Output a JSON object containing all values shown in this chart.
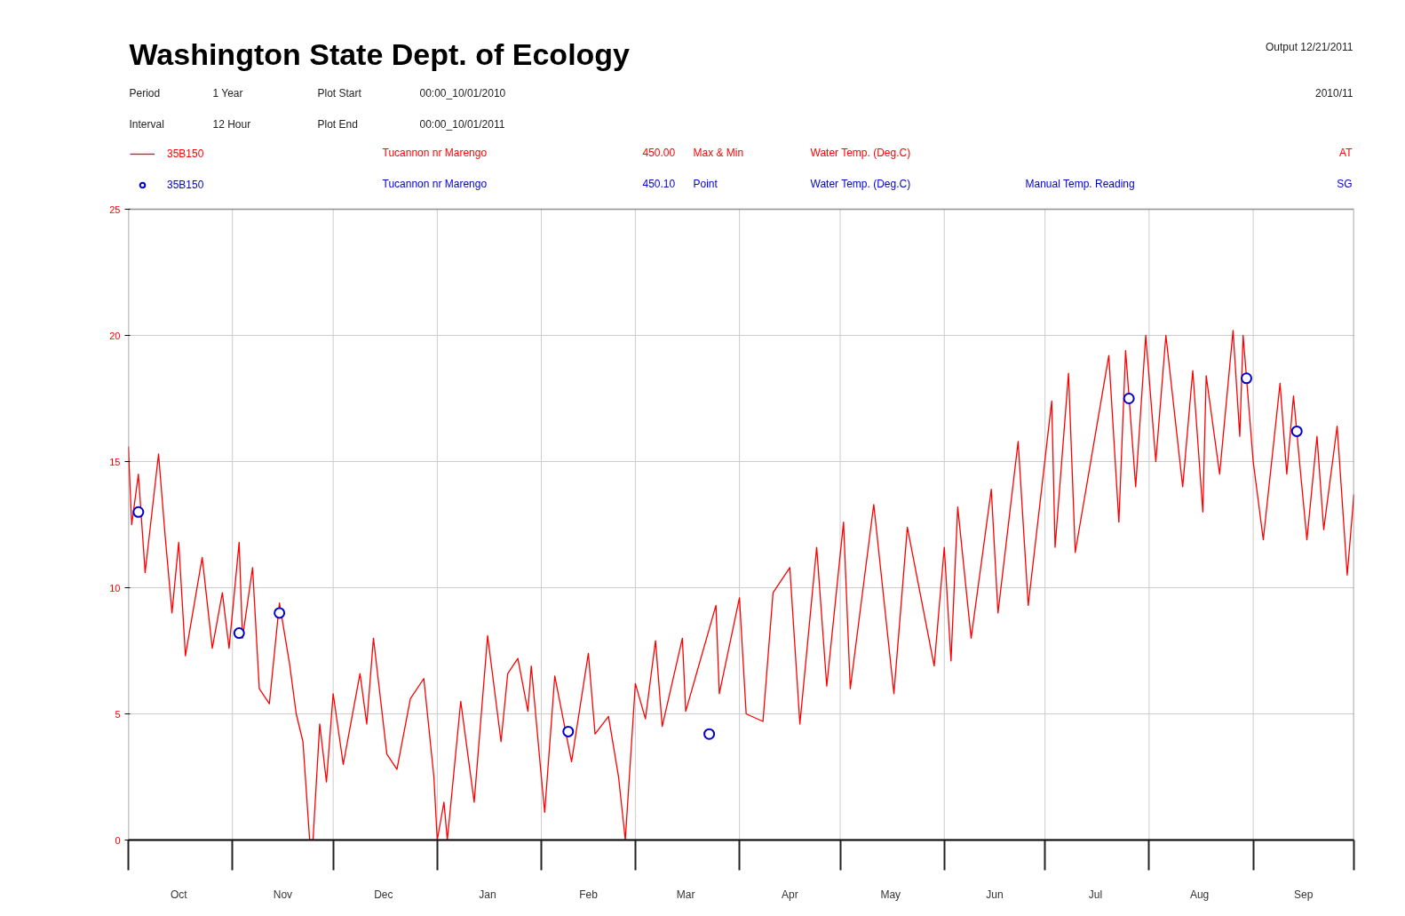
{
  "chart_data": {
    "type": "line",
    "title": "Washington State Dept. of Ecology",
    "annotations": [
      "Period",
      "1 Year",
      "Plot Start",
      "00:00_10/01/2010",
      "Output 12/21/2011",
      "2010/11",
      "Interval",
      "12 Hour",
      "Plot End",
      "00:00_10/01/2011",
      "Tucannon nr Marengo",
      "450.00",
      "Max & Min",
      "Water Temp. (Deg.C)",
      "AT",
      "Tucannon nr Marengo",
      "450.10",
      "Point",
      "Water Temp. (Deg.C)",
      "Manual Temp. Reading",
      "SG"
    ],
    "xlim": [
      "2010-10-01",
      "2011-10-01"
    ],
    "xticks": [
      {
        "value": "2010-10-01",
        "label": null
      },
      {
        "value": "2010-10-16",
        "label": "Oct"
      },
      {
        "value": "2010-11-01",
        "label": null
      },
      {
        "value": "2010-11-16",
        "label": "Nov"
      },
      {
        "value": "2010-12-01",
        "label": null
      },
      {
        "value": "2010-12-16",
        "label": "Dec"
      },
      {
        "value": "2011-01-01",
        "label": null
      },
      {
        "value": "2011-01-16",
        "label": "Jan"
      },
      {
        "value": "2011-02-01",
        "label": null
      },
      {
        "value": "2011-02-15",
        "label": "Feb"
      },
      {
        "value": "2011-03-01",
        "label": null
      },
      {
        "value": "2011-03-16",
        "label": "Mar"
      },
      {
        "value": "2011-04-01",
        "label": null
      },
      {
        "value": "2011-04-16",
        "label": "Apr"
      },
      {
        "value": "2011-05-01",
        "label": null
      },
      {
        "value": "2011-05-16",
        "label": "May"
      },
      {
        "value": "2011-06-01",
        "label": null
      },
      {
        "value": "2011-06-16",
        "label": "Jun"
      },
      {
        "value": "2011-07-01",
        "label": null
      },
      {
        "value": "2011-07-16",
        "label": "Jul"
      },
      {
        "value": "2011-08-01",
        "label": null
      },
      {
        "value": "2011-08-16",
        "label": "Aug"
      },
      {
        "value": "2011-09-01",
        "label": null
      },
      {
        "value": "2011-09-16",
        "label": "Sep"
      },
      {
        "value": "2011-10-01",
        "label": null
      }
    ],
    "ylim": [
      0,
      25
    ],
    "yticks": [
      0,
      5,
      10,
      15,
      20,
      25
    ],
    "grid": true,
    "legend": "top left",
    "series": [
      {
        "name": "35B150",
        "color": "#ff0000",
        "x": [
          "2010-10-01",
          "2010-10-02",
          "2010-10-04",
          "2010-10-06",
          "2010-10-10",
          "2010-10-12",
          "2010-10-14",
          "2010-10-16",
          "2010-10-18",
          "2010-10-23",
          "2010-10-26",
          "2010-10-29",
          "2010-10-31",
          "2010-11-03",
          "2010-11-04",
          "2010-11-07",
          "2010-11-09",
          "2010-11-12",
          "2010-11-15",
          "2010-11-18",
          "2010-11-20",
          "2010-11-22",
          "2010-11-24",
          "2010-11-25",
          "2010-11-27",
          "2010-11-29",
          "2010-12-01",
          "2010-12-04",
          "2010-12-09",
          "2010-12-11",
          "2010-12-13",
          "2010-12-17",
          "2010-12-20",
          "2010-12-24",
          "2010-12-28",
          "2010-12-31",
          "2011-01-01",
          "2011-01-03",
          "2011-01-04",
          "2011-01-08",
          "2011-01-12",
          "2011-01-16",
          "2011-01-20",
          "2011-01-22",
          "2011-01-25",
          "2011-01-28",
          "2011-01-29",
          "2011-02-01",
          "2011-02-02",
          "2011-02-05",
          "2011-02-10",
          "2011-02-15",
          "2011-02-17",
          "2011-02-21",
          "2011-02-24",
          "2011-02-26",
          "2011-03-01",
          "2011-03-04",
          "2011-03-07",
          "2011-03-09",
          "2011-03-15",
          "2011-03-16",
          "2011-03-25",
          "2011-03-26",
          "2011-04-01",
          "2011-04-03",
          "2011-04-08",
          "2011-04-11",
          "2011-04-16",
          "2011-04-19",
          "2011-04-24",
          "2011-04-27",
          "2011-05-02",
          "2011-05-04",
          "2011-05-11",
          "2011-05-17",
          "2011-05-21",
          "2011-05-29",
          "2011-06-01",
          "2011-06-03",
          "2011-06-05",
          "2011-06-09",
          "2011-06-15",
          "2011-06-17",
          "2011-06-23",
          "2011-06-26",
          "2011-07-03",
          "2011-07-04",
          "2011-07-08",
          "2011-07-10",
          "2011-07-20",
          "2011-07-23",
          "2011-07-25",
          "2011-07-28",
          "2011-07-31",
          "2011-08-03",
          "2011-08-06",
          "2011-08-11",
          "2011-08-14",
          "2011-08-17",
          "2011-08-18",
          "2011-08-22",
          "2011-08-26",
          "2011-08-28",
          "2011-08-29",
          "2011-09-01",
          "2011-09-04",
          "2011-09-09",
          "2011-09-11",
          "2011-09-13",
          "2011-09-15",
          "2011-09-17",
          "2011-09-20",
          "2011-09-22",
          "2011-09-26",
          "2011-09-29",
          "2011-10-01"
        ],
        "values": [
          15.6,
          12.5,
          14.5,
          10.6,
          15.3,
          12.0,
          9.0,
          11.8,
          7.3,
          11.2,
          7.6,
          9.8,
          7.6,
          11.8,
          8.0,
          10.8,
          6.0,
          5.4,
          9.4,
          7.0,
          5.0,
          3.9,
          0,
          0,
          4.6,
          2.3,
          5.8,
          3.0,
          6.6,
          4.6,
          8.0,
          3.4,
          2.8,
          5.6,
          6.4,
          2.5,
          0,
          1.5,
          0,
          5.5,
          1.5,
          8.1,
          3.9,
          6.6,
          7.2,
          5.1,
          6.9,
          2.5,
          1.1,
          6.5,
          3.1,
          7.4,
          4.2,
          4.9,
          2.5,
          0,
          6.2,
          4.8,
          7.9,
          4.5,
          8.0,
          5.1,
          9.3,
          5.8,
          9.6,
          5.0,
          4.7,
          9.8,
          10.8,
          4.6,
          11.6,
          6.1,
          12.6,
          6.0,
          13.3,
          5.8,
          12.4,
          6.9,
          11.6,
          7.1,
          13.2,
          8.0,
          13.9,
          9.0,
          15.8,
          9.3,
          17.4,
          11.6,
          18.5,
          11.4,
          19.2,
          12.6,
          19.4,
          14.0,
          20.0,
          15.0,
          20.0,
          14.0,
          18.6,
          13.0,
          18.4,
          14.5,
          20.2,
          16.0,
          20.0,
          15.0,
          11.9,
          18.1,
          14.5,
          17.6,
          14.7,
          11.9,
          16.0,
          12.3,
          16.4,
          10.5,
          13.7
        ]
      },
      {
        "name": "35B150",
        "color": "#0000cc",
        "type": "scatter",
        "x": [
          "2010-10-04",
          "2010-11-03",
          "2010-11-15",
          "2011-02-09",
          "2011-03-23",
          "2011-07-26",
          "2011-08-30",
          "2011-09-14"
        ],
        "values": [
          13.0,
          8.2,
          9.0,
          4.3,
          4.2,
          17.5,
          18.3,
          16.2
        ]
      }
    ]
  }
}
